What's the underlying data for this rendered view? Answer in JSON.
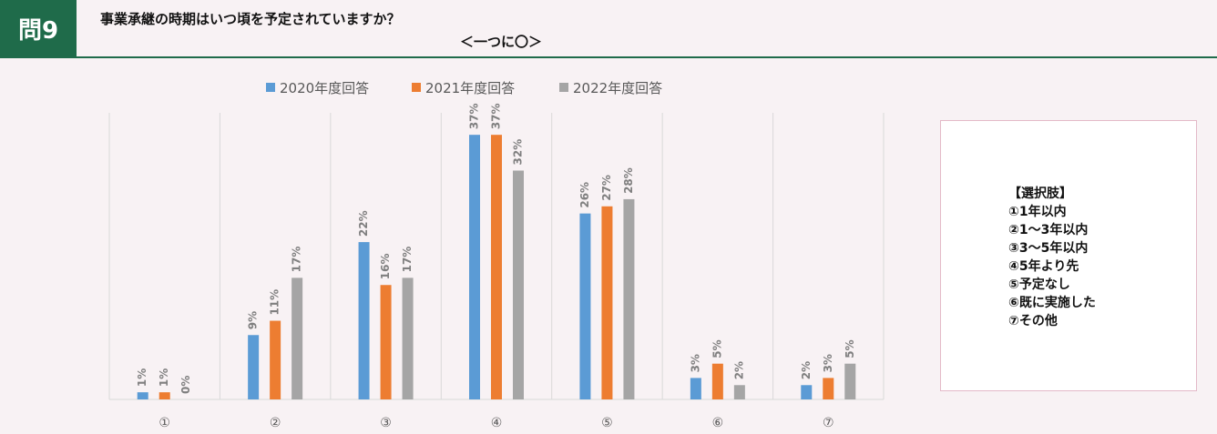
{
  "header": {
    "question_number": "問9",
    "title": "事業承継の時期はいつ頃を予定されていますか？",
    "instruction": "＜一つに〇＞"
  },
  "options_box": {
    "heading": "【選択肢】",
    "items": [
      "①1年以内",
      "②1～3年以内",
      "③3～5年以内",
      "④5年より先",
      "⑤予定なし",
      "⑥既に実施した",
      "⑦その他"
    ]
  },
  "colors": {
    "2020": "#5b9bd5",
    "2021": "#ed7d31",
    "2022": "#a5a5a5"
  },
  "chart_data": {
    "type": "bar",
    "title": "",
    "xlabel": "",
    "ylabel": "",
    "ylim": [
      0,
      40
    ],
    "grid": "vertical separators",
    "legend_position": "top",
    "categories": [
      "①",
      "②",
      "③",
      "④",
      "⑤",
      "⑥",
      "⑦"
    ],
    "series": [
      {
        "name": "2020年度回答",
        "values": [
          1,
          9,
          22,
          37,
          26,
          3,
          2
        ],
        "labels": [
          "1%",
          "9%",
          "22%",
          "37%",
          "26%",
          "3%",
          "2%"
        ]
      },
      {
        "name": "2021年度回答",
        "values": [
          1,
          11,
          16,
          37,
          27,
          5,
          3
        ],
        "labels": [
          "1%",
          "11%",
          "16%",
          "37%",
          "27%",
          "5%",
          "3%"
        ]
      },
      {
        "name": "2022年度回答",
        "values": [
          0,
          17,
          17,
          32,
          28,
          2,
          5
        ],
        "labels": [
          "0%",
          "17%",
          "17%",
          "32%",
          "28%",
          "2%",
          "5%"
        ]
      }
    ]
  }
}
